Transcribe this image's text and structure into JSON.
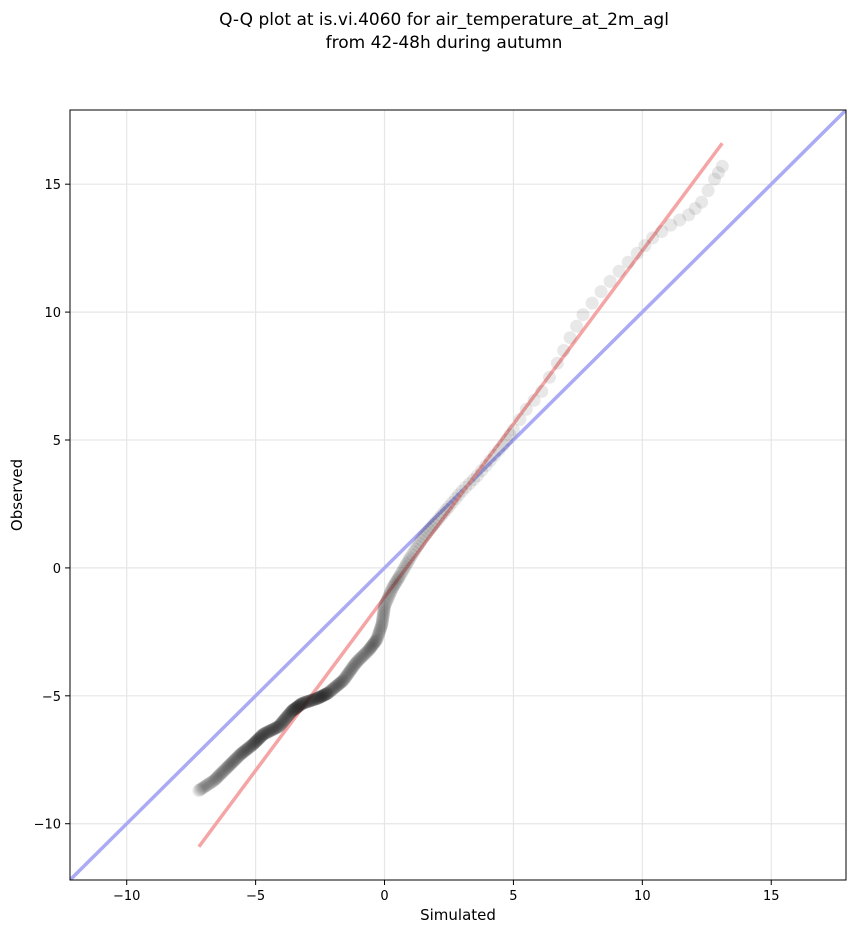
{
  "chart_data": {
    "type": "scatter",
    "title": "Q-Q plot at is.vi.4060 for air_temperature_at_2m_agl",
    "subtitle": "from 42-48h during autumn",
    "xlabel": "Simulated",
    "ylabel": "Observed",
    "xlim": [
      -12.2,
      17.9
    ],
    "ylim": [
      -12.2,
      17.9
    ],
    "xticks": [
      -10,
      -5,
      0,
      5,
      10,
      15
    ],
    "yticks": [
      -10,
      -5,
      0,
      5,
      10,
      15
    ],
    "xtick_labels": [
      "−10",
      "−5",
      "0",
      "5",
      "10",
      "15"
    ],
    "ytick_labels": [
      "−10",
      "−5",
      "0",
      "5",
      "10",
      "15"
    ],
    "grid": true,
    "reference_lines": {
      "identity": {
        "x": [
          -12.2,
          17.9
        ],
        "y": [
          -12.2,
          17.9
        ],
        "color": "#aaaaf5"
      },
      "fit": {
        "x": [
          -7.2,
          13.1
        ],
        "y": [
          -10.9,
          16.6
        ],
        "color": "#f5a5a5"
      }
    },
    "quantile_control_points": [
      [
        -7.2,
        -8.7
      ],
      [
        -6.6,
        -8.3
      ],
      [
        -6.1,
        -7.8
      ],
      [
        -5.6,
        -7.3
      ],
      [
        -5.1,
        -6.9
      ],
      [
        -4.7,
        -6.5
      ],
      [
        -4.1,
        -6.2
      ],
      [
        -3.6,
        -5.6
      ],
      [
        -3.2,
        -5.3
      ],
      [
        -2.6,
        -5.1
      ],
      [
        -2.2,
        -4.9
      ],
      [
        -1.6,
        -4.4
      ],
      [
        -1.1,
        -3.7
      ],
      [
        -0.6,
        -3.2
      ],
      [
        -0.3,
        -2.8
      ],
      [
        -0.1,
        -2.2
      ],
      [
        0.0,
        -1.5
      ],
      [
        0.3,
        -0.8
      ],
      [
        0.6,
        -0.3
      ],
      [
        1.0,
        0.4
      ],
      [
        1.5,
        1.2
      ],
      [
        2.0,
        1.8
      ],
      [
        2.5,
        2.4
      ],
      [
        3.0,
        3.0
      ],
      [
        3.6,
        3.6
      ],
      [
        4.1,
        4.2
      ],
      [
        4.6,
        4.8
      ],
      [
        5.0,
        5.4
      ],
      [
        5.5,
        6.2
      ],
      [
        6.1,
        6.9
      ],
      [
        6.7,
        8.0
      ],
      [
        7.2,
        9.0
      ],
      [
        7.7,
        9.9
      ],
      [
        8.4,
        10.8
      ],
      [
        9.1,
        11.6
      ],
      [
        9.8,
        12.3
      ],
      [
        10.4,
        12.9
      ],
      [
        11.1,
        13.4
      ],
      [
        11.8,
        13.8
      ],
      [
        12.3,
        14.3
      ],
      [
        12.8,
        15.2
      ],
      [
        13.1,
        15.7
      ]
    ]
  }
}
